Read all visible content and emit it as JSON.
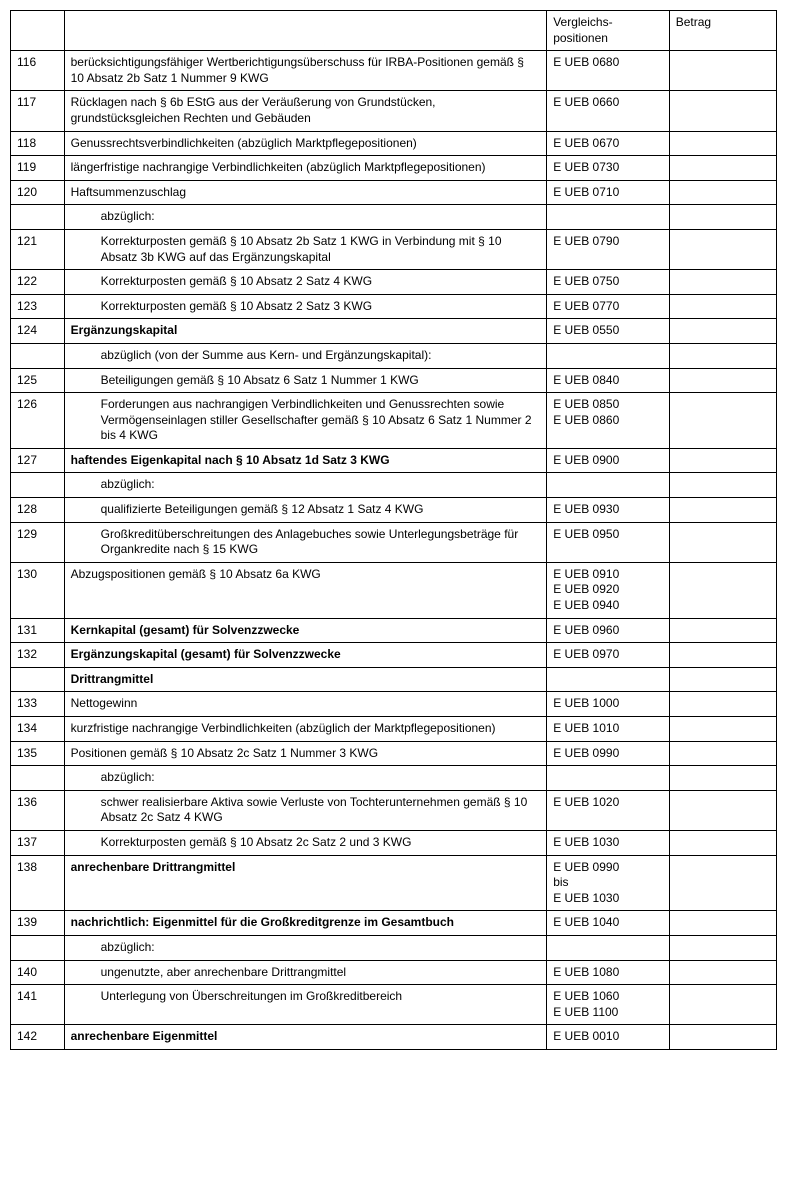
{
  "header": {
    "col1": "",
    "col2": "",
    "col3": "Vergleichs-positionen",
    "col4": "Betrag"
  },
  "rows": [
    {
      "num": "116",
      "desc": "berücksichtigungsfähiger Wertberichtigungsüberschuss für IRBA-Positionen gemäß § 10 Absatz 2b Satz 1 Nummer 9 KWG",
      "comp": "E UEB 0680",
      "indent": 0,
      "bold": false
    },
    {
      "num": "117",
      "desc": "Rücklagen nach § 6b EStG aus der Veräußerung von Grundstücken, grundstücksgleichen Rechten und Gebäuden",
      "comp": "E UEB 0660",
      "indent": 0,
      "bold": false
    },
    {
      "num": "118",
      "desc": "Genussrechtsverbindlichkeiten (abzüglich Marktpflegepositionen)",
      "comp": "E UEB 0670",
      "indent": 0,
      "bold": false
    },
    {
      "num": "119",
      "desc": "längerfristige nachrangige Verbindlichkeiten (abzüglich Marktpflegepositionen)",
      "comp": "E UEB 0730",
      "indent": 0,
      "bold": false
    },
    {
      "num": "120",
      "desc": "Haftsummenzuschlag",
      "comp": "E UEB 0710",
      "indent": 0,
      "bold": false
    },
    {
      "num": "",
      "desc": "abzüglich:",
      "comp": "",
      "indent": 1,
      "bold": false
    },
    {
      "num": "121",
      "desc": "Korrekturposten gemäß § 10 Absatz 2b Satz 1 KWG in Verbindung mit § 10 Absatz 3b KWG auf das Ergänzungskapital",
      "comp": "E UEB 0790",
      "indent": 1,
      "bold": false
    },
    {
      "num": "122",
      "desc": "Korrekturposten gemäß § 10 Absatz 2 Satz 4 KWG",
      "comp": "E UEB 0750",
      "indent": 1,
      "bold": false
    },
    {
      "num": "123",
      "desc": "Korrekturposten gemäß § 10 Absatz 2 Satz 3 KWG",
      "comp": "E UEB 0770",
      "indent": 1,
      "bold": false
    },
    {
      "num": "124",
      "desc": "Ergänzungskapital",
      "comp": "E UEB 0550",
      "indent": 0,
      "bold": true
    },
    {
      "num": "",
      "desc": "abzüglich (von der Summe aus Kern- und Ergänzungskapital):",
      "comp": "",
      "indent": 1,
      "bold": false
    },
    {
      "num": "125",
      "desc": "Beteiligungen gemäß § 10 Absatz 6 Satz 1 Nummer 1 KWG",
      "comp": "E UEB 0840",
      "indent": 1,
      "bold": false
    },
    {
      "num": "126",
      "desc": "Forderungen aus nachrangigen Verbindlichkeiten und Genussrechten sowie Vermögenseinlagen stiller Gesellschafter gemäß § 10 Absatz 6 Satz 1 Nummer 2 bis 4 KWG",
      "comp": "E UEB 0850\nE UEB 0860",
      "indent": 1,
      "bold": false
    },
    {
      "num": "127",
      "desc": "haftendes Eigenkapital nach § 10 Absatz 1d Satz 3 KWG",
      "comp": "E UEB 0900",
      "indent": 0,
      "bold": true
    },
    {
      "num": "",
      "desc": "abzüglich:",
      "comp": "",
      "indent": 1,
      "bold": false
    },
    {
      "num": "128",
      "desc": "qualifizierte Beteiligungen gemäß § 12 Absatz 1 Satz 4 KWG",
      "comp": "E UEB 0930",
      "indent": 1,
      "bold": false
    },
    {
      "num": "129",
      "desc": "Großkreditüberschreitungen des Anlagebuches sowie Unterlegungsbeträge für Organkredite nach § 15 KWG",
      "comp": "E UEB 0950",
      "indent": 1,
      "bold": false
    },
    {
      "num": "130",
      "desc": "Abzugspositionen gemäß § 10 Absatz 6a KWG",
      "comp": "E UEB 0910\nE UEB 0920\nE UEB 0940",
      "indent": 0,
      "bold": false
    },
    {
      "num": "131",
      "desc": "Kernkapital (gesamt) für Solvenzzwecke",
      "comp": "E UEB 0960",
      "indent": 0,
      "bold": true
    },
    {
      "num": "132",
      "desc": "Ergänzungskapital (gesamt) für Solvenzzwecke",
      "comp": "E UEB 0970",
      "indent": 0,
      "bold": true
    },
    {
      "num": "",
      "desc": "Drittrangmittel",
      "comp": "",
      "indent": 0,
      "bold": true
    },
    {
      "num": "133",
      "desc": "Nettogewinn",
      "comp": "E UEB 1000",
      "indent": 0,
      "bold": false
    },
    {
      "num": "134",
      "desc": "kurzfristige nachrangige Verbindlichkeiten (abzüglich der Marktpflegepositionen)",
      "comp": "E UEB 1010",
      "indent": 0,
      "bold": false
    },
    {
      "num": "135",
      "desc": "Positionen gemäß § 10 Absatz 2c Satz 1 Nummer 3 KWG",
      "comp": "E UEB 0990",
      "indent": 0,
      "bold": false
    },
    {
      "num": "",
      "desc": "abzüglich:",
      "comp": "",
      "indent": 1,
      "bold": false
    },
    {
      "num": "136",
      "desc": "schwer realisierbare Aktiva sowie Verluste von Tochterunternehmen gemäß § 10 Absatz 2c Satz 4 KWG",
      "comp": "E UEB 1020",
      "indent": 1,
      "bold": false
    },
    {
      "num": "137",
      "desc": "Korrekturposten gemäß § 10 Absatz 2c Satz 2 und 3 KWG",
      "comp": "E UEB 1030",
      "indent": 1,
      "bold": false
    },
    {
      "num": "138",
      "desc": "anrechenbare Drittrangmittel",
      "comp": "E UEB 0990\nbis\nE UEB 1030",
      "indent": 0,
      "bold": true
    },
    {
      "num": "139",
      "desc": "nachrichtlich: Eigenmittel für die Großkreditgrenze im Gesamtbuch",
      "comp": "E UEB 1040",
      "indent": 0,
      "bold": true
    },
    {
      "num": "",
      "desc": "abzüglich:",
      "comp": "",
      "indent": 1,
      "bold": false
    },
    {
      "num": "140",
      "desc": "ungenutzte, aber anrechenbare Drittrangmittel",
      "comp": "E UEB 1080",
      "indent": 1,
      "bold": false
    },
    {
      "num": "141",
      "desc": "Unterlegung von Überschreitungen im Großkreditbereich",
      "comp": "E UEB 1060\nE UEB 1100",
      "indent": 1,
      "bold": false
    },
    {
      "num": "142",
      "desc": "anrechenbare Eigenmittel",
      "comp": "E UEB 0010",
      "indent": 0,
      "bold": true
    }
  ]
}
